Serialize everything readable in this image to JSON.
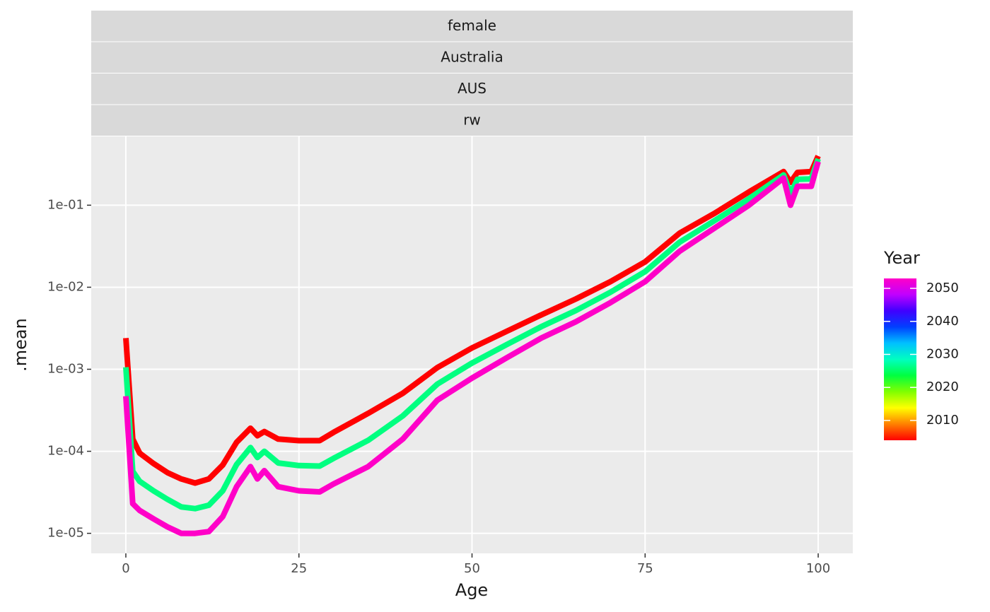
{
  "chart_data": {
    "type": "line",
    "strips": [
      "female",
      "Australia",
      "AUS",
      "rw"
    ],
    "x_label": "Age",
    "y_label": ".mean",
    "x": [
      0,
      1,
      2,
      4,
      6,
      8,
      10,
      12,
      14,
      16,
      18,
      19,
      20,
      22,
      25,
      28,
      30,
      35,
      40,
      45,
      50,
      55,
      60,
      65,
      70,
      75,
      80,
      85,
      90,
      95,
      96,
      97,
      99,
      100
    ],
    "series": [
      {
        "name": "2004",
        "color": "#ff0000",
        "values": [
          0.0024,
          0.000141,
          9.5e-05,
          7.1e-05,
          5.5e-05,
          4.6e-05,
          4.1e-05,
          4.6e-05,
          6.8e-05,
          0.000129,
          0.000191,
          0.000155,
          0.000174,
          0.000141,
          0.000135,
          0.000135,
          0.00017,
          0.00029,
          0.00051,
          0.00105,
          0.00182,
          0.0029,
          0.0046,
          0.0072,
          0.0117,
          0.0204,
          0.0457,
          0.0794,
          0.145,
          0.257,
          0.19,
          0.251,
          0.257,
          0.398
        ]
      },
      {
        "name": "2028",
        "color": "#00ff80",
        "values": [
          0.00106,
          5.7e-05,
          4.3e-05,
          3.3e-05,
          2.6e-05,
          2.1e-05,
          2e-05,
          2.2e-05,
          3.3e-05,
          6.9e-05,
          0.000111,
          8.4e-05,
          0.0001,
          7.2e-05,
          6.7e-05,
          6.6e-05,
          8.2e-05,
          0.000136,
          0.00027,
          0.00066,
          0.00119,
          0.002,
          0.0033,
          0.0052,
          0.0087,
          0.0155,
          0.0355,
          0.0646,
          0.12,
          0.234,
          0.138,
          0.207,
          0.209,
          0.367
        ]
      },
      {
        "name": "2053",
        "color": "#ff00c8",
        "values": [
          0.00047,
          2.3e-05,
          1.9e-05,
          1.5e-05,
          1.2e-05,
          1e-05,
          1e-05,
          1.05e-05,
          1.6e-05,
          3.7e-05,
          6.5e-05,
          4.6e-05,
          5.8e-05,
          3.7e-05,
          3.3e-05,
          3.2e-05,
          4e-05,
          6.5e-05,
          0.000141,
          0.00042,
          0.00078,
          0.00138,
          0.0024,
          0.0038,
          0.0065,
          0.0117,
          0.0275,
          0.0525,
          0.1,
          0.214,
          0.1,
          0.17,
          0.17,
          0.339
        ]
      }
    ],
    "xlim": [
      -5,
      105
    ],
    "xticks": [
      0,
      25,
      50,
      75,
      100
    ],
    "ylim": [
      5.7e-06,
      0.69
    ],
    "y_log": true,
    "yticks": [
      {
        "value": 1e-05,
        "label": "1e-05"
      },
      {
        "value": 0.0001,
        "label": "1e-04"
      },
      {
        "value": 0.001,
        "label": "1e-03"
      },
      {
        "value": 0.01,
        "label": "1e-02"
      },
      {
        "value": 0.1,
        "label": "1e-01"
      }
    ],
    "grid": true,
    "colorbar": {
      "title": "Year",
      "range": [
        2004,
        2053
      ],
      "ticks": [
        2010,
        2020,
        2030,
        2040,
        2050
      ],
      "colors": [
        "#ff0000",
        "#ff8000",
        "#ffff00",
        "#80ff00",
        "#00ff40",
        "#00ffc0",
        "#00c0ff",
        "#0040ff",
        "#4000ff",
        "#c000ff",
        "#ff00c8"
      ]
    }
  }
}
